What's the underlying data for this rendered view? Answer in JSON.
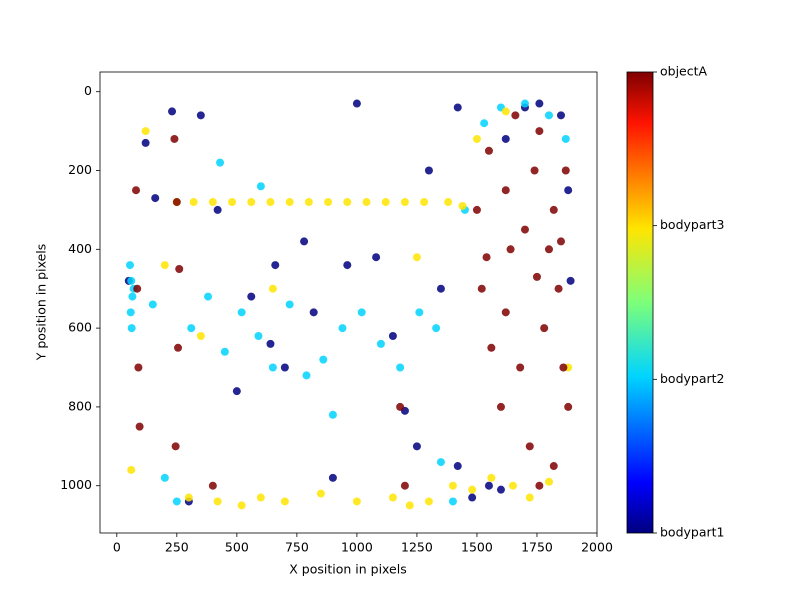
{
  "chart_data": {
    "type": "scatter",
    "x_label": "X position in pixels",
    "y_label": "Y position in pixels",
    "xlim": [
      -70,
      2000
    ],
    "ylim": [
      1120,
      -50
    ],
    "xticks": [
      0,
      250,
      500,
      750,
      1000,
      1250,
      1500,
      1750,
      2000
    ],
    "yticks": [
      0,
      200,
      400,
      600,
      800,
      1000
    ],
    "series": [
      {
        "name": "bodypart1",
        "color": "#00007f",
        "x": [
          50,
          120,
          230,
          350,
          420,
          560,
          640,
          700,
          820,
          900,
          1000,
          1080,
          1150,
          1250,
          1350,
          1420,
          1480,
          1550,
          1620,
          1700,
          1760,
          1850,
          1890,
          300,
          780,
          960,
          1200,
          1600,
          500,
          1300,
          1420,
          1880,
          160,
          660
        ],
        "values": [
          480,
          130,
          50,
          60,
          300,
          520,
          640,
          700,
          560,
          980,
          30,
          420,
          620,
          900,
          500,
          950,
          1030,
          1000,
          120,
          40,
          30,
          60,
          480,
          1040,
          380,
          440,
          810,
          1010,
          760,
          200,
          40,
          250,
          270,
          440
        ]
      },
      {
        "name": "bodypart2",
        "color": "#00d4ff",
        "x": [
          55,
          60,
          65,
          58,
          62,
          70,
          150,
          200,
          310,
          380,
          450,
          520,
          590,
          650,
          720,
          790,
          860,
          940,
          1020,
          1100,
          1180,
          1260,
          1330,
          1400,
          1450,
          1530,
          1600,
          1700,
          1800,
          1870,
          250,
          430,
          600,
          900,
          1350
        ],
        "values": [
          440,
          480,
          520,
          560,
          600,
          500,
          540,
          980,
          600,
          520,
          660,
          560,
          620,
          700,
          540,
          720,
          680,
          600,
          560,
          640,
          700,
          560,
          600,
          1040,
          300,
          80,
          40,
          30,
          60,
          120,
          1040,
          180,
          240,
          820,
          940
        ]
      },
      {
        "name": "bodypart3",
        "color": "#ffe500",
        "x": [
          250,
          320,
          400,
          480,
          560,
          640,
          720,
          800,
          880,
          960,
          1040,
          1120,
          1200,
          1280,
          1380,
          1440,
          300,
          420,
          520,
          600,
          700,
          850,
          1000,
          1150,
          1220,
          1300,
          1400,
          1480,
          1560,
          1650,
          1720,
          1800,
          1880,
          60,
          120,
          200,
          350,
          650,
          1250,
          1500,
          1620
        ],
        "values": [
          280,
          280,
          280,
          280,
          280,
          280,
          280,
          280,
          280,
          280,
          280,
          280,
          280,
          280,
          280,
          290,
          1030,
          1040,
          1050,
          1030,
          1040,
          1020,
          1040,
          1030,
          1050,
          1040,
          1000,
          1010,
          980,
          1000,
          1030,
          990,
          700,
          960,
          100,
          440,
          620,
          500,
          420,
          120,
          50
        ]
      },
      {
        "name": "objectA",
        "color": "#7f0000",
        "x": [
          1500,
          1520,
          1560,
          1600,
          1640,
          1680,
          1720,
          1740,
          1760,
          1780,
          1800,
          1820,
          1840,
          1860,
          1880,
          1550,
          1620,
          1700,
          1760,
          1820,
          1870,
          240,
          250,
          260,
          255,
          245,
          80,
          85,
          90,
          95,
          1200,
          1180,
          400,
          1620,
          1750,
          1850,
          1540,
          1660
        ],
        "values": [
          300,
          500,
          650,
          800,
          400,
          700,
          900,
          200,
          100,
          600,
          400,
          300,
          500,
          700,
          800,
          150,
          250,
          350,
          1000,
          950,
          200,
          120,
          280,
          450,
          650,
          900,
          250,
          500,
          700,
          850,
          1000,
          800,
          1000,
          560,
          470,
          380,
          420,
          60
        ]
      }
    ]
  }
}
